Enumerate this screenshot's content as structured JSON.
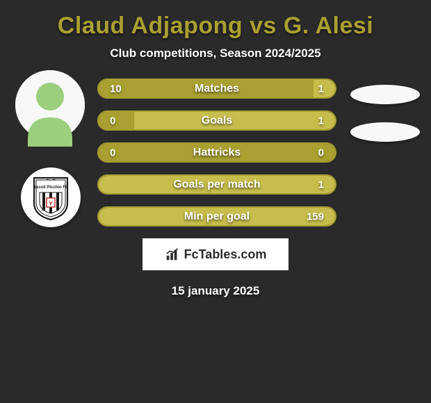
{
  "title": "Claud Adjapong vs G. Alesi",
  "subtitle": "Club competitions, Season 2024/2025",
  "footer_brand": "FcTables.com",
  "footer_date": "15 january 2025",
  "colors": {
    "background": "#2a2a2a",
    "accent": "#a9a031",
    "accent_light": "#c6bd4c",
    "accent_border": "#a9a031",
    "text": "#ffffff",
    "ellipse": "#f8f8f8"
  },
  "stats": [
    {
      "label": "Matches",
      "left_value": "10",
      "right_value": "1",
      "left_fill_pct": 91,
      "right_fill_pct": 9,
      "left_fill_color": "#a9a031",
      "right_fill_color": "#c6bd4c",
      "border_color": "#a9a031",
      "has_side_ellipse": true
    },
    {
      "label": "Goals",
      "left_value": "0",
      "right_value": "1",
      "left_fill_pct": 15,
      "right_fill_pct": 85,
      "left_fill_color": "#a9a031",
      "right_fill_color": "#c6bd4c",
      "border_color": "#a9a031",
      "has_side_ellipse": true
    },
    {
      "label": "Hattricks",
      "left_value": "0",
      "right_value": "0",
      "left_fill_pct": 100,
      "right_fill_pct": 0,
      "left_fill_color": "#a9a031",
      "right_fill_color": "#c6bd4c",
      "border_color": "#a9a031",
      "has_side_ellipse": false
    },
    {
      "label": "Goals per match",
      "left_value": "",
      "right_value": "1",
      "left_fill_pct": 0,
      "right_fill_pct": 100,
      "left_fill_color": "#a9a031",
      "right_fill_color": "#c6bd4c",
      "border_color": "#a9a031",
      "has_side_ellipse": false
    },
    {
      "label": "Min per goal",
      "left_value": "",
      "right_value": "159",
      "left_fill_pct": 0,
      "right_fill_pct": 100,
      "left_fill_color": "#a9a031",
      "right_fill_color": "#c6bd4c",
      "border_color": "#a9a031",
      "has_side_ellipse": false
    }
  ]
}
